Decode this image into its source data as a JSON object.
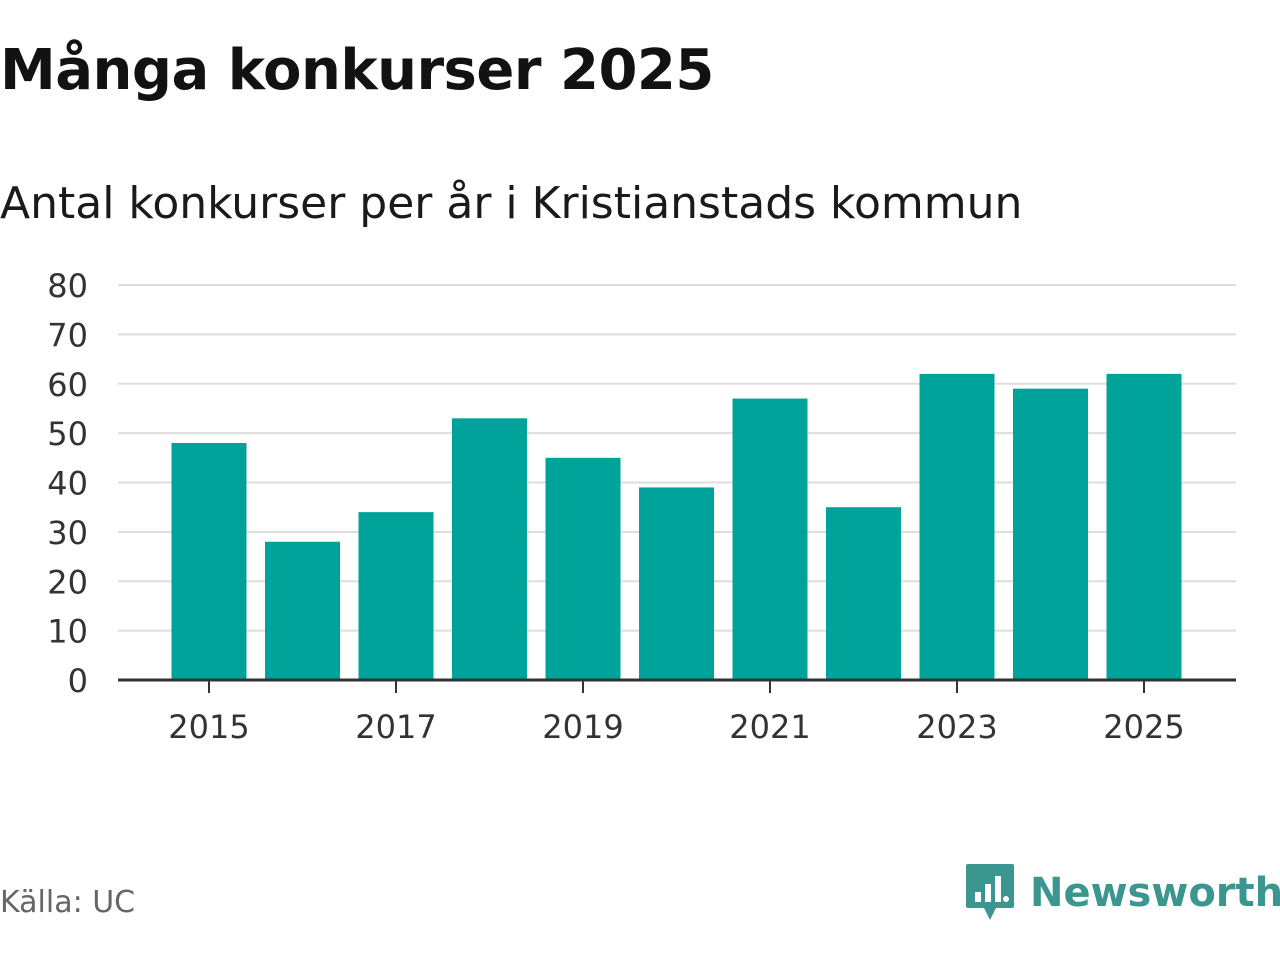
{
  "title": "Många konkurser 2025",
  "subtitle": "Antal konkurser per år i Kristianstads kommun",
  "source": "Källa: UC",
  "brand": "Newsworthy",
  "colors": {
    "bar": "#00a39a",
    "grid": "#dddddd",
    "axis": "#333333",
    "brand": "#3a968e"
  },
  "chart_data": {
    "type": "bar",
    "x": [
      2015,
      2016,
      2017,
      2018,
      2019,
      2020,
      2021,
      2022,
      2023,
      2024,
      2025
    ],
    "values": [
      48,
      28,
      34,
      53,
      45,
      39,
      57,
      35,
      62,
      59,
      62
    ],
    "x_tick_labels": [
      "2015",
      "2017",
      "2019",
      "2021",
      "2023",
      "2025"
    ],
    "y_ticks": [
      0,
      10,
      20,
      30,
      40,
      50,
      60,
      70,
      80
    ],
    "ylim": [
      0,
      80
    ],
    "title": "Många konkurser 2025",
    "subtitle": "Antal konkurser per år i Kristianstads kommun",
    "xlabel": "",
    "ylabel": "",
    "grid": true,
    "legend": false
  }
}
